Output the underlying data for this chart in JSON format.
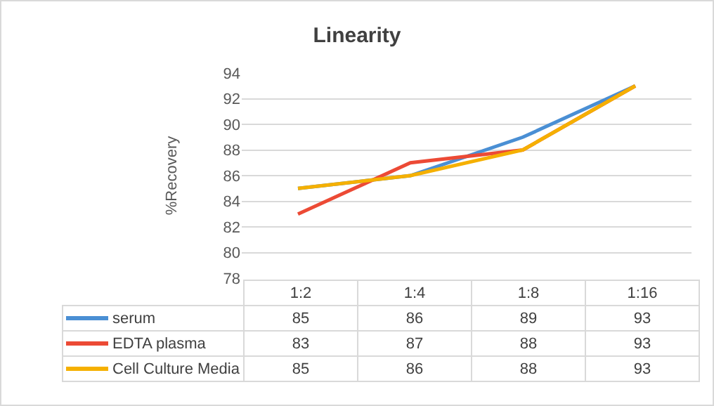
{
  "chart_data": {
    "type": "line",
    "title": "Linearity",
    "ylabel": "%Recovery",
    "categories": [
      "1:2",
      "1:4",
      "1:8",
      "1:16"
    ],
    "series": [
      {
        "name": "serum",
        "color": "#4a8fd4",
        "values": [
          85,
          86,
          89,
          93
        ]
      },
      {
        "name": "EDTA plasma",
        "color": "#ec4a35",
        "values": [
          83,
          87,
          88,
          93
        ]
      },
      {
        "name": "Cell Culture Media",
        "color": "#f5b000",
        "values": [
          85,
          86,
          88,
          93
        ]
      }
    ],
    "ylim": [
      78,
      94
    ],
    "yticks": [
      78,
      80,
      82,
      84,
      86,
      88,
      90,
      92,
      94
    ],
    "grid": "y",
    "legend": "bottom",
    "data_labels": true,
    "line_style": "solid",
    "marker": "none"
  }
}
